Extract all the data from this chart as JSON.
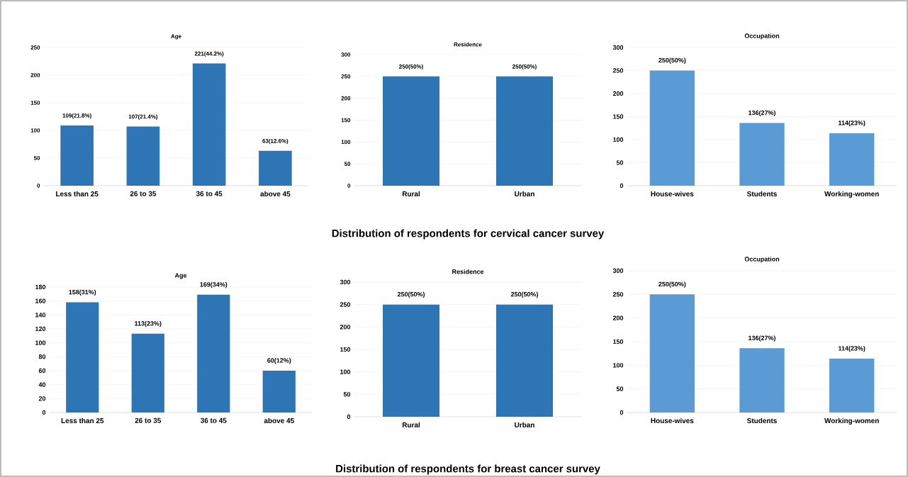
{
  "chart_data": [
    {
      "type": "bar",
      "title": "Age",
      "categories": [
        "Less than 25",
        "26 to 35",
        "36 to 45",
        "above 45"
      ],
      "values": [
        109,
        107,
        221,
        63
      ],
      "value_labels": [
        "109(21.8%)",
        "107(21.4%)",
        "221(44.2%)",
        "63(12.6%)"
      ],
      "color": "#2e75b6",
      "ylim": [
        0,
        250
      ],
      "yticks": [
        0,
        50,
        100,
        150,
        200,
        250
      ],
      "grid": "y"
    },
    {
      "type": "bar",
      "title": "Residence",
      "categories": [
        "Rural",
        "Urban"
      ],
      "values": [
        250,
        250
      ],
      "value_labels": [
        "250(50%)",
        "250(50%)"
      ],
      "color": "#2e75b6",
      "ylim": [
        0,
        300
      ],
      "yticks": [
        0,
        50,
        100,
        150,
        200,
        250,
        300
      ],
      "grid": "y",
      "annotations": [
        "Distribution of respondents for cervical cancer survey"
      ]
    },
    {
      "type": "bar",
      "title": "Occupation",
      "categories": [
        "House-wives",
        "Students",
        "Working-women"
      ],
      "values": [
        250,
        136,
        114
      ],
      "value_labels": [
        "250(50%)",
        "136(27%)",
        "114(23%)"
      ],
      "color": "#5b9bd5",
      "ylim": [
        0,
        300
      ],
      "yticks": [
        0,
        50,
        100,
        150,
        200,
        250,
        300
      ],
      "grid": "y"
    },
    {
      "type": "bar",
      "title": "Age",
      "categories": [
        "Less than 25",
        "26 to 35",
        "36 to 45",
        "above 45"
      ],
      "values": [
        158,
        113,
        169,
        60
      ],
      "value_labels": [
        "158(31%)",
        "113(23%)",
        "169(34%)",
        "60(12%)"
      ],
      "color": "#2e75b6",
      "ylim": [
        0,
        180
      ],
      "yticks": [
        0,
        20,
        40,
        60,
        80,
        100,
        120,
        140,
        160,
        180
      ],
      "grid": "y"
    },
    {
      "type": "bar",
      "title": "Residence",
      "categories": [
        "Rural",
        "Urban"
      ],
      "values": [
        250,
        250
      ],
      "value_labels": [
        "250(50%)",
        "250(50%)"
      ],
      "color": "#2e75b6",
      "ylim": [
        0,
        300
      ],
      "yticks": [
        0,
        50,
        100,
        150,
        200,
        250,
        300
      ],
      "grid": "y",
      "annotations": [
        "Distribution of respondents for breast cancer survey"
      ]
    },
    {
      "type": "bar",
      "title": "Occupation",
      "categories": [
        "House-wives",
        "Students",
        "Working-women"
      ],
      "values": [
        250,
        136,
        114
      ],
      "value_labels": [
        "250(50%)",
        "136(27%)",
        "114(23%)"
      ],
      "color": "#5b9bd5",
      "ylim": [
        0,
        300
      ],
      "yticks": [
        0,
        50,
        100,
        150,
        200,
        250,
        300
      ],
      "grid": "y"
    }
  ]
}
